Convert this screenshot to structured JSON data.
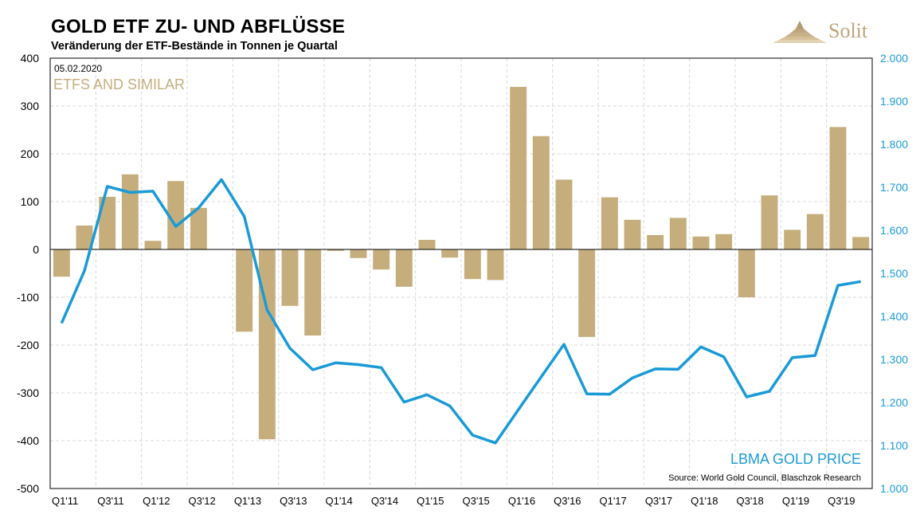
{
  "title": "GOLD ETF ZU- UND ABFLÜSSE",
  "subtitle": "Veränderung der ETF-Bestände in Tonnen je Quartal",
  "logo_text": "Solit",
  "date": "05.02.2020",
  "source": "Source: World Gold Council, Blaschzok Research",
  "colors": {
    "bar": "#c5ae7c",
    "line": "#1a9ad6",
    "left_label": "#c5ae7c",
    "right_axis": "#1a9ad6",
    "grid": "#d9d9d9"
  },
  "chart_data": {
    "type": "bar",
    "categories": [
      "Q1'11",
      "Q2'11",
      "Q3'11",
      "Q4'11",
      "Q1'12",
      "Q2'12",
      "Q3'12",
      "Q4'12",
      "Q1'13",
      "Q2'13",
      "Q3'13",
      "Q4'13",
      "Q1'14",
      "Q2'14",
      "Q3'14",
      "Q4'14",
      "Q1'15",
      "Q2'15",
      "Q3'15",
      "Q4'15",
      "Q1'16",
      "Q2'16",
      "Q3'16",
      "Q4'16",
      "Q1'17",
      "Q2'17",
      "Q3'17",
      "Q4'17",
      "Q1'18",
      "Q2'18",
      "Q3'18",
      "Q4'18",
      "Q1'19",
      "Q2'19",
      "Q3'19",
      "Q4'19"
    ],
    "x_tick_labels": [
      "Q1'11",
      "Q3'11",
      "Q1'12",
      "Q3'12",
      "Q1'13",
      "Q3'13",
      "Q1'14",
      "Q3'14",
      "Q1'15",
      "Q3'15",
      "Q1'16",
      "Q3'16",
      "Q1'17",
      "Q3'17",
      "Q1'18",
      "Q3'18",
      "Q1'19",
      "Q3'19"
    ],
    "series": [
      {
        "name": "ETFS AND SIMILAR",
        "type": "bar",
        "axis": "left",
        "values": [
          -57,
          50,
          110,
          157,
          18,
          143,
          87,
          0,
          -172,
          -397,
          -118,
          -180,
          -3,
          -18,
          -42,
          -78,
          20,
          -17,
          -62,
          -64,
          340,
          237,
          146,
          -183,
          109,
          62,
          30,
          66,
          27,
          32,
          -100,
          113,
          41,
          74,
          256,
          26
        ]
      },
      {
        "name": "LBMA GOLD PRICE",
        "type": "line",
        "axis": "right",
        "values": [
          1384,
          1506,
          1702,
          1688,
          1691,
          1609,
          1652,
          1718,
          1632,
          1415,
          1326,
          1276,
          1292,
          1288,
          1281,
          1201,
          1218,
          1192,
          1124,
          1106,
          1183,
          1259,
          1335,
          1220,
          1219,
          1257,
          1278,
          1277,
          1329,
          1306,
          1213,
          1226,
          1304,
          1309,
          1472,
          1481
        ]
      }
    ],
    "ylim": [
      -500,
      400
    ],
    "yticks": [
      "400",
      "300",
      "200",
      "100",
      "0",
      "-100",
      "-200",
      "-300",
      "-400",
      "-500"
    ],
    "y2lim": [
      1000,
      2000
    ],
    "y2ticks": [
      "2.000",
      "1.900",
      "1.800",
      "1.700",
      "1.600",
      "1.500",
      "1.400",
      "1.300",
      "1.200",
      "1.100",
      "1.000"
    ],
    "grid": true,
    "legend": "inline labels"
  }
}
